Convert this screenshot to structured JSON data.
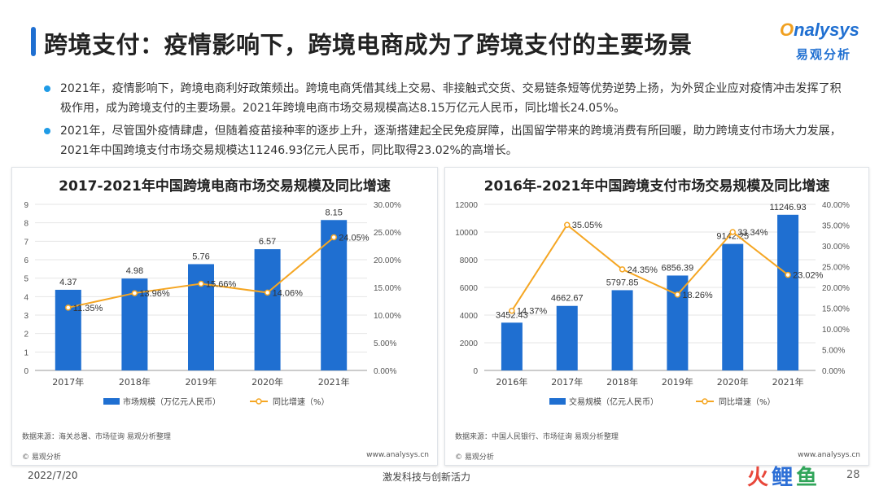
{
  "header": {
    "title": "跨境支付：疫情影响下，跨境电商成为了跨境支付的主要场景",
    "logo_en": "nalysys",
    "logo_cn": "易观分析"
  },
  "bullets": [
    "2021年，疫情影响下，跨境电商利好政策频出。跨境电商凭借其线上交易、非接触式交货、交易链条短等优势逆势上扬，为外贸企业应对疫情冲击发挥了积极作用，成为跨境支付的主要场景。2021年跨境电商市场交易规模高达8.15万亿元人民币，同比增长24.05%。",
    "2021年，尽管国外疫情肆虐，但随着疫苗接种率的逐步上升，逐渐搭建起全民免疫屏障，出国留学带来的跨境消费有所回暖，助力跨境支付市场大力发展，2021年中国跨境支付市场交易规模达11246.93亿元人民币，同比取得23.02%的高增长。"
  ],
  "chart_data": [
    {
      "type": "bar",
      "title": "2017-2021年中国跨境电商市场交易规模及同比增速",
      "categories": [
        "2017年",
        "2018年",
        "2019年",
        "2020年",
        "2021年"
      ],
      "series": [
        {
          "name": "市场规模（万亿元人民币）",
          "type": "bar",
          "axis": "left",
          "values": [
            4.37,
            4.98,
            5.76,
            6.57,
            8.15
          ],
          "labels": [
            "4.37",
            "4.98",
            "5.76",
            "6.57",
            "8.15"
          ]
        },
        {
          "name": "同比增速（%）",
          "type": "line",
          "axis": "right",
          "values": [
            11.35,
            13.96,
            15.66,
            14.06,
            24.05
          ],
          "labels": [
            "11.35%",
            "13.96%",
            "15.66%",
            "14.06%",
            "24.05%"
          ]
        }
      ],
      "y_left": {
        "min": 0,
        "max": 9,
        "ticks": [
          "0",
          "1",
          "2",
          "3",
          "4",
          "5",
          "6",
          "7",
          "8",
          "9"
        ]
      },
      "y_right": {
        "min": 0,
        "max": 30,
        "ticks": [
          "0.00%",
          "5.00%",
          "10.00%",
          "15.00%",
          "20.00%",
          "25.00%",
          "30.00%"
        ]
      },
      "source": "数据来源：海关总署、市场征询 易观分析整理",
      "copyright": "© 易观分析",
      "site": "www.analysys.cn",
      "grid": true,
      "legend": "bottom"
    },
    {
      "type": "bar",
      "title": "2016年-2021年中国跨境支付市场交易规模及同比增速",
      "categories": [
        "2016年",
        "2017年",
        "2018年",
        "2019年",
        "2020年",
        "2021年"
      ],
      "series": [
        {
          "name": "交易规模（亿元人民币）",
          "type": "bar",
          "axis": "left",
          "values": [
            3452.43,
            4662.67,
            5797.85,
            6856.39,
            9142.25,
            11246.93
          ],
          "labels": [
            "3452.43",
            "4662.67",
            "5797.85",
            "6856.39",
            "9142.25",
            "11246.93"
          ]
        },
        {
          "name": "同比增速（%）",
          "type": "line",
          "axis": "right",
          "values": [
            14.37,
            35.05,
            24.35,
            18.26,
            33.34,
            23.02
          ],
          "labels": [
            "14.37%",
            "35.05%",
            "24.35%",
            "18.26%",
            "33.34%",
            "23.02%"
          ]
        }
      ],
      "y_left": {
        "min": 0,
        "max": 12000,
        "ticks": [
          "0",
          "2000",
          "4000",
          "6000",
          "8000",
          "10000",
          "12000"
        ]
      },
      "y_right": {
        "min": 0,
        "max": 40,
        "ticks": [
          "0.00%",
          "5.00%",
          "10.00%",
          "15.00%",
          "20.00%",
          "25.00%",
          "30.00%",
          "35.00%",
          "40.00%"
        ]
      },
      "source": "数据来源：中国人民银行、市场征询 易观分析整理",
      "copyright": "© 易观分析",
      "site": "www.analysys.cn",
      "grid": true,
      "legend": "bottom"
    }
  ],
  "colors": {
    "bar": "#1f6fd1",
    "line": "#f5a623",
    "title_bar": "#1f6fd1"
  },
  "footer": {
    "date": "2022/7/20",
    "slogan": "激发科技与创新活力",
    "page": "28",
    "brand_parts": [
      "火",
      "鲤",
      "鱼"
    ]
  }
}
